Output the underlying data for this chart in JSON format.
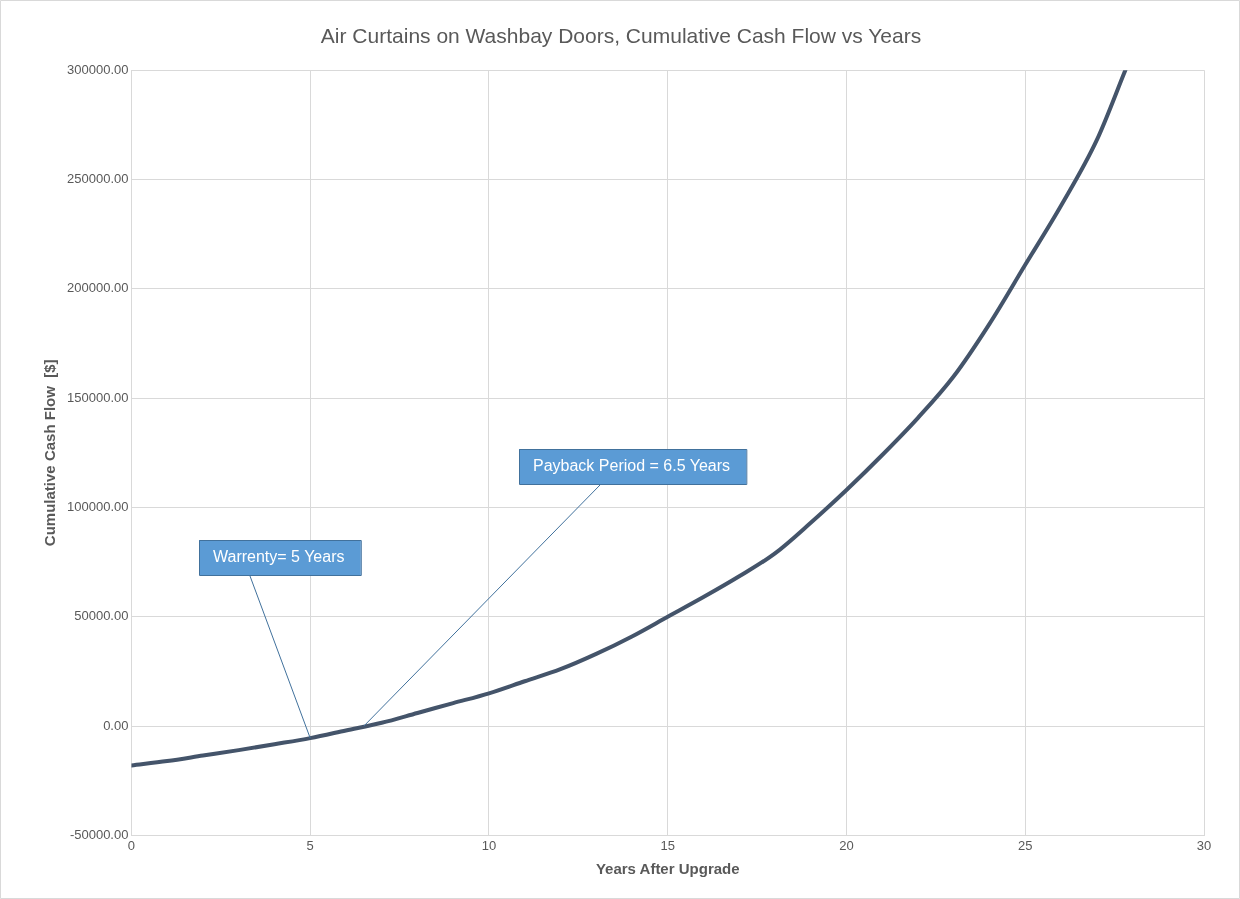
{
  "chart_data": {
    "type": "line",
    "title": "Air Curtains on Washbay Doors, Cumulative Cash Flow vs Years",
    "xlabel": "Years After Upgrade",
    "ylabel": "Cumulative Cash Flow  [$]",
    "x": [
      0,
      1,
      2,
      3,
      4,
      5,
      6,
      7,
      8,
      9,
      10,
      11,
      12,
      13,
      14,
      15,
      16,
      17,
      18,
      19,
      20,
      21,
      22,
      23,
      24,
      25,
      26,
      27,
      27.8
    ],
    "series": [
      {
        "color": "#44546a",
        "values": [
          -18000,
          -16000,
          -13500,
          -11000,
          -8300,
          -5500,
          -2000,
          1500,
          6000,
          10500,
          15000,
          20500,
          26000,
          33000,
          41000,
          50000,
          59000,
          68500,
          79000,
          93000,
          108000,
          124000,
          141000,
          160000,
          184000,
          211000,
          238000,
          268000,
          300000
        ]
      }
    ],
    "xlim": [
      0,
      30
    ],
    "xticks": [
      0,
      5,
      10,
      15,
      20,
      25,
      30
    ],
    "ylim": [
      -50000,
      300000
    ],
    "yticks": [
      {
        "value": -50000,
        "label": "-50000.00"
      },
      {
        "value": 0,
        "label": "0.00"
      },
      {
        "value": 50000,
        "label": "50000.00"
      },
      {
        "value": 100000,
        "label": "100000.00"
      },
      {
        "value": 150000,
        "label": "150000.00"
      },
      {
        "value": 200000,
        "label": "200000.00"
      },
      {
        "value": 250000,
        "label": "250000.00"
      },
      {
        "value": 300000,
        "label": "300000.00"
      }
    ],
    "annotations": [
      {
        "text": "Warrenty= 5 Years",
        "x": 5,
        "y": -5500
      },
      {
        "text": "Payback Period = 6.5 Years",
        "x": 6.5,
        "y": 0
      }
    ],
    "grid": true,
    "legend": false,
    "marker": "none",
    "line_style": "solid"
  }
}
